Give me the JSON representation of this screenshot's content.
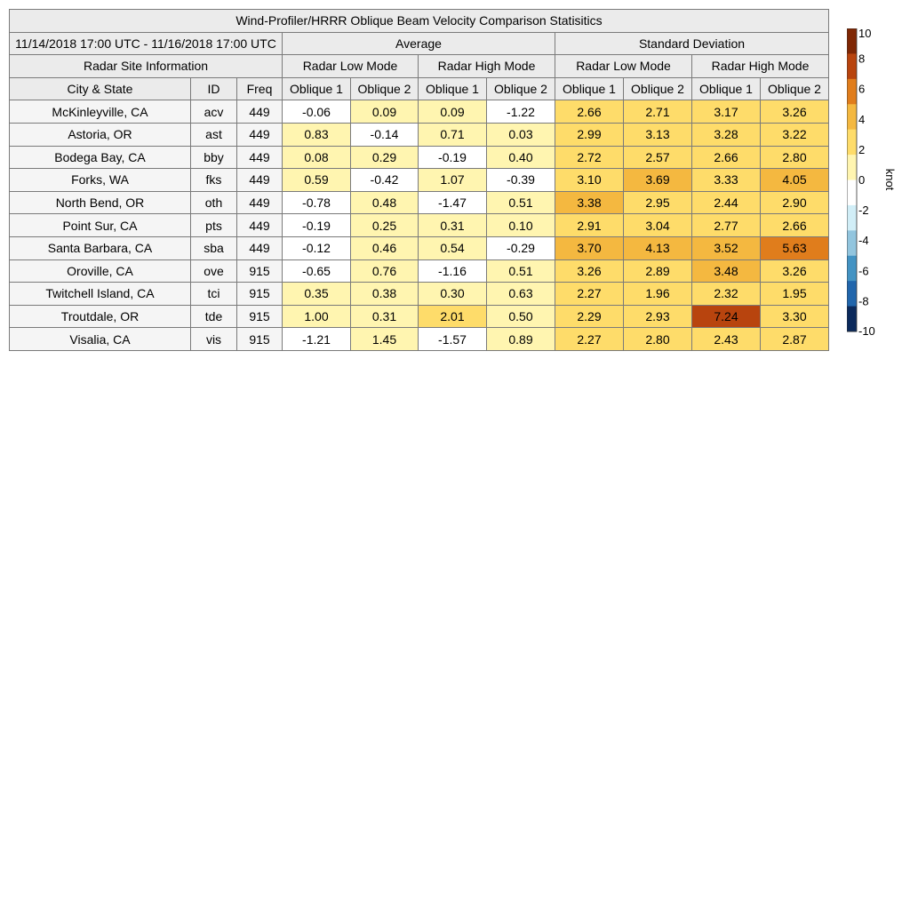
{
  "table": {
    "title": "Wind-Profiler/HRRR Oblique Beam Velocity Comparison Statisitics",
    "date_range": "11/14/2018 17:00 UTC - 11/16/2018 17:00 UTC",
    "average_label": "Average",
    "stddev_label": "Standard Deviation",
    "site_info_label": "Radar Site Information",
    "low_mode_label": "Radar Low Mode",
    "high_mode_label": "Radar High Mode",
    "col_city": "City & State",
    "col_id": "ID",
    "col_freq": "Freq",
    "oblique1": "Oblique 1",
    "oblique2": "Oblique 2"
  },
  "chart_data": {
    "type": "table",
    "title": "Wind-Profiler/HRRR Oblique Beam Velocity Comparison Statisitics",
    "columns": [
      "City & State",
      "ID",
      "Freq",
      "Average Radar Low Mode Oblique 1",
      "Average Radar Low Mode Oblique 2",
      "Average Radar High Mode Oblique 1",
      "Average Radar High Mode Oblique 2",
      "Standard Deviation Radar Low Mode Oblique 1",
      "Standard Deviation Radar Low Mode Oblique 2",
      "Standard Deviation Radar High Mode Oblique 1",
      "Standard Deviation Radar High Mode Oblique 2"
    ],
    "rows": [
      {
        "city": "McKinleyville, CA",
        "id": "acv",
        "freq": "449",
        "values": [
          "-0.06",
          "0.09",
          "0.09",
          "-1.22",
          "2.66",
          "2.71",
          "3.17",
          "3.26"
        ]
      },
      {
        "city": "Astoria, OR",
        "id": "ast",
        "freq": "449",
        "values": [
          "0.83",
          "-0.14",
          "0.71",
          "0.03",
          "2.99",
          "3.13",
          "3.28",
          "3.22"
        ]
      },
      {
        "city": "Bodega Bay, CA",
        "id": "bby",
        "freq": "449",
        "values": [
          "0.08",
          "0.29",
          "-0.19",
          "0.40",
          "2.72",
          "2.57",
          "2.66",
          "2.80"
        ]
      },
      {
        "city": "Forks, WA",
        "id": "fks",
        "freq": "449",
        "values": [
          "0.59",
          "-0.42",
          "1.07",
          "-0.39",
          "3.10",
          "3.69",
          "3.33",
          "4.05"
        ]
      },
      {
        "city": "North Bend, OR",
        "id": "oth",
        "freq": "449",
        "values": [
          "-0.78",
          "0.48",
          "-1.47",
          "0.51",
          "3.38",
          "2.95",
          "2.44",
          "2.90"
        ]
      },
      {
        "city": "Point Sur, CA",
        "id": "pts",
        "freq": "449",
        "values": [
          "-0.19",
          "0.25",
          "0.31",
          "0.10",
          "2.91",
          "3.04",
          "2.77",
          "2.66"
        ]
      },
      {
        "city": "Santa Barbara, CA",
        "id": "sba",
        "freq": "449",
        "values": [
          "-0.12",
          "0.46",
          "0.54",
          "-0.29",
          "3.70",
          "4.13",
          "3.52",
          "5.63"
        ]
      },
      {
        "city": "Oroville, CA",
        "id": "ove",
        "freq": "915",
        "values": [
          "-0.65",
          "0.76",
          "-1.16",
          "0.51",
          "3.26",
          "2.89",
          "3.48",
          "3.26"
        ]
      },
      {
        "city": "Twitchell Island, CA",
        "id": "tci",
        "freq": "915",
        "values": [
          "0.35",
          "0.38",
          "0.30",
          "0.63",
          "2.27",
          "1.96",
          "2.32",
          "1.95"
        ]
      },
      {
        "city": "Troutdale, OR",
        "id": "tde",
        "freq": "915",
        "values": [
          "1.00",
          "0.31",
          "2.01",
          "0.50",
          "2.29",
          "2.93",
          "7.24",
          "3.30"
        ]
      },
      {
        "city": "Visalia, CA",
        "id": "vis",
        "freq": "915",
        "values": [
          "-1.21",
          "1.45",
          "-1.57",
          "0.89",
          "2.27",
          "2.80",
          "2.43",
          "2.87"
        ]
      }
    ],
    "colorbar": {
      "label": "knot",
      "range": [
        -10,
        10
      ],
      "ticks": [
        "10",
        "8",
        "6",
        "4",
        "2",
        "0",
        "-2",
        "-4",
        "-6",
        "-8",
        "-10"
      ],
      "colors": [
        "#0b2a5c",
        "#2166ac",
        "#4393c3",
        "#92c5de",
        "#d1eef7",
        "#ffffff",
        "#fff5b0",
        "#fedc6a",
        "#f4b840",
        "#e07d1c",
        "#b8440e",
        "#7f2704"
      ]
    }
  }
}
